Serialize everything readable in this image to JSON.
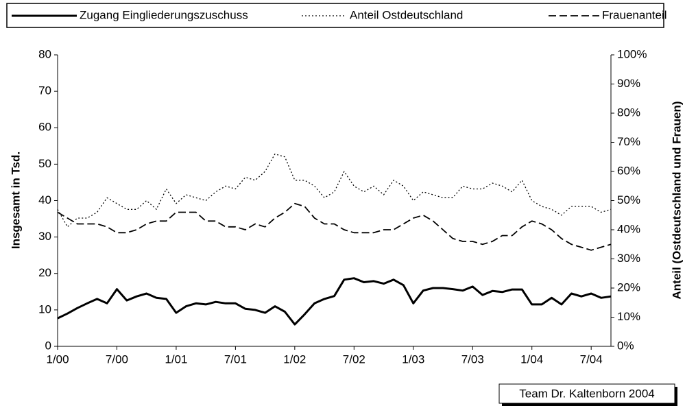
{
  "chart_data": {
    "type": "line",
    "y_label": "Insgesamt in Tsd.",
    "y2_label": "Anteil (Ostdeutschland und Frauen)",
    "annotation": "Team Dr. Kaltenborn 2004",
    "categories": [
      "1/00",
      null,
      null,
      null,
      null,
      null,
      "7/00",
      null,
      null,
      null,
      null,
      null,
      "1/01",
      null,
      null,
      null,
      null,
      null,
      "7/01",
      null,
      null,
      null,
      null,
      null,
      "1/02",
      null,
      null,
      null,
      null,
      null,
      "7/02",
      null,
      null,
      null,
      null,
      null,
      "1/03",
      null,
      null,
      null,
      null,
      null,
      "7/03",
      null,
      null,
      null,
      null,
      null,
      "1/04",
      null,
      null,
      null,
      null,
      null,
      "7/04",
      null,
      null
    ],
    "ylim": [
      0,
      80
    ],
    "yticks": [
      0,
      10,
      20,
      30,
      40,
      50,
      60,
      70,
      80
    ],
    "y2lim": [
      0,
      100
    ],
    "y2ticks": [
      {
        "value": 0,
        "label": "0%"
      },
      {
        "value": 10,
        "label": "10%"
      },
      {
        "value": 20,
        "label": "20%"
      },
      {
        "value": 30,
        "label": "30%"
      },
      {
        "value": 40,
        "label": "40%"
      },
      {
        "value": 50,
        "label": "50%"
      },
      {
        "value": 60,
        "label": "60%"
      },
      {
        "value": 70,
        "label": "70%"
      },
      {
        "value": 80,
        "label": "80%"
      },
      {
        "value": 90,
        "label": "90%"
      },
      {
        "value": 100,
        "label": "100%"
      }
    ],
    "legend": "top",
    "series": [
      {
        "name": "Zugang Eingliederungszuschuss",
        "color": "#000000",
        "style": "solid",
        "values": [
          7.7,
          9,
          10.5,
          11.8,
          13,
          11.8,
          15.7,
          12.6,
          13.7,
          14.5,
          13.3,
          13,
          9.2,
          11,
          11.8,
          11.5,
          12.2,
          11.8,
          11.8,
          10.3,
          10,
          9.2,
          11,
          9.5,
          6,
          8.8,
          11.8,
          13,
          13.8,
          18.3,
          18.7,
          17.6,
          17.9,
          17.2,
          18.3,
          16.8,
          11.8,
          15.3,
          16,
          16,
          15.7,
          15.3,
          16.4,
          14.1,
          15.2,
          14.9,
          15.6,
          15.6,
          11.5,
          11.5,
          13.3,
          11.5,
          14.5,
          13.7,
          14.5,
          13.3,
          13.7
        ]
      },
      {
        "name": "Anteil Ostdeutschland",
        "color": "#000000",
        "style": "dotted",
        "axis": "y2",
        "values": [
          47,
          41,
          44,
          44,
          46,
          51,
          49,
          47,
          47,
          50,
          47,
          54,
          49,
          52,
          51,
          50,
          53,
          55,
          54,
          58,
          57,
          60,
          66,
          65,
          57,
          57,
          55,
          51,
          53,
          60,
          55,
          53,
          55,
          52,
          57,
          55,
          50,
          53,
          52,
          51,
          51,
          55,
          54,
          54,
          56,
          55,
          53,
          57,
          50,
          48,
          47,
          45,
          48,
          48,
          48,
          46,
          47
        ]
      },
      {
        "name": "Frauenanteil",
        "color": "#000000",
        "style": "dashed",
        "axis": "y2",
        "values": [
          46,
          44,
          42,
          42,
          42,
          41,
          39,
          39,
          40,
          42,
          43,
          43,
          46,
          46,
          46,
          43,
          43,
          41,
          41,
          40,
          42,
          41,
          44,
          46,
          49,
          48,
          44,
          42,
          42,
          40,
          39,
          39,
          39,
          40,
          40,
          42,
          44,
          45,
          43,
          40,
          37,
          36,
          36,
          35,
          36,
          38,
          38,
          41,
          43,
          42,
          40,
          37,
          35,
          34,
          33,
          34,
          35
        ]
      }
    ]
  }
}
